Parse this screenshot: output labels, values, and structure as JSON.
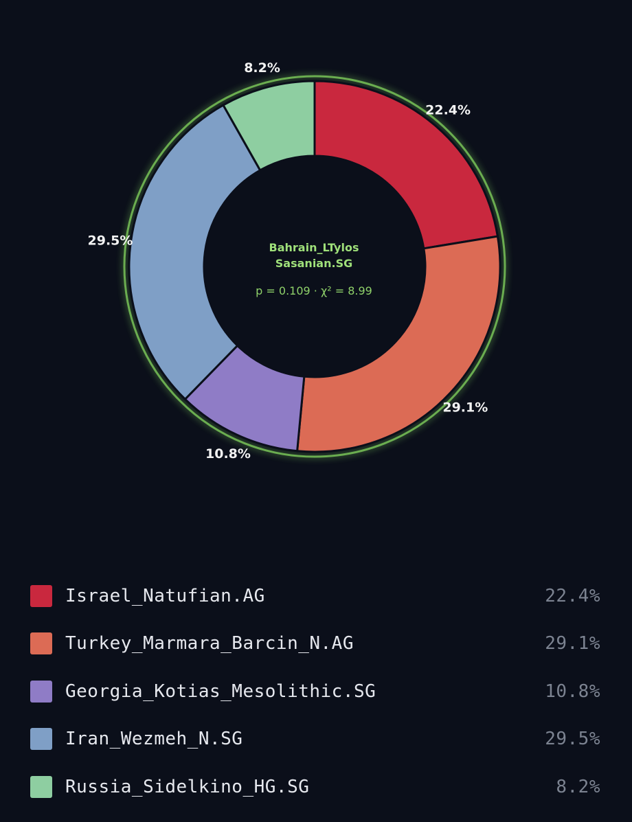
{
  "chart_data": {
    "type": "pie",
    "variant": "donut",
    "center_title_line1": "Bahrain_LTylos",
    "center_title_line2": "Sasanian.SG",
    "center_stats": "p = 0.109 · χ² = 8.99",
    "ring_glow_color": "#7bc95a",
    "slices": [
      {
        "label": "Israel_Natufian.AG",
        "value": 22.4,
        "display": "22.4%",
        "color": "#c9283e"
      },
      {
        "label": "Turkey_Marmara_Barcin_N.AG",
        "value": 29.1,
        "display": "29.1%",
        "color": "#dc6b55"
      },
      {
        "label": "Georgia_Kotias_Mesolithic.SG",
        "value": 10.8,
        "display": "10.8%",
        "color": "#8f7cc6"
      },
      {
        "label": "Iran_Wezmeh_N.SG",
        "value": 29.5,
        "display": "29.5%",
        "color": "#7f9fc6"
      },
      {
        "label": "Russia_Sidelkino_HG.SG",
        "value": 8.2,
        "display": "8.2%",
        "color": "#8ecea1"
      }
    ],
    "legend_position": "bottom"
  }
}
